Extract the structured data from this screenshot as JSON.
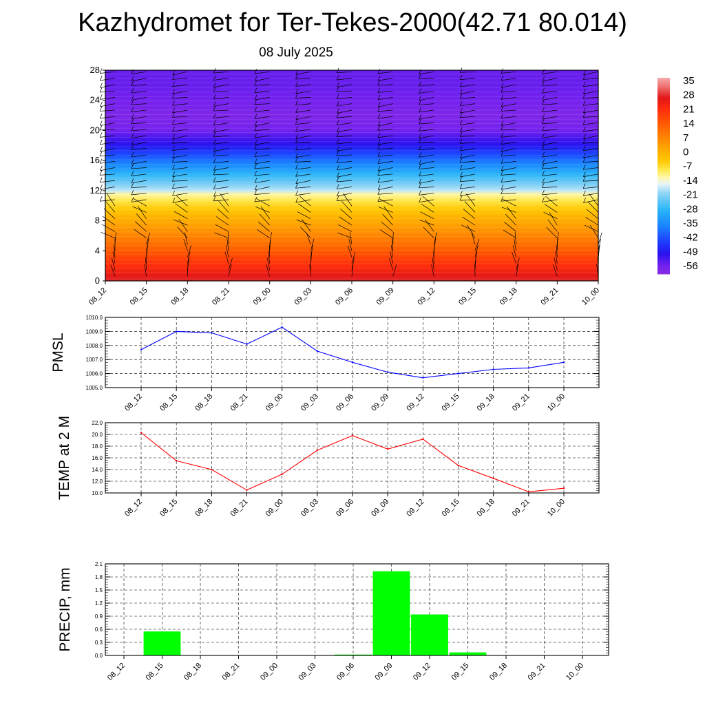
{
  "page": {
    "title": "Kazhydromet for Ter-Tekes-2000(42.71 80.014)",
    "subtitle": "08 July 2025"
  },
  "chart_data": [
    {
      "type": "heatmap",
      "name": "vertical temperature cross-section with wind barbs",
      "x_ticks": [
        "08_12",
        "08_15",
        "08_18",
        "08_21",
        "09_00",
        "09_03",
        "09_06",
        "09_09",
        "09_12",
        "09_15",
        "09_18",
        "09_21",
        "10_00"
      ],
      "y_ticks": [
        0,
        4,
        8,
        12,
        16,
        20,
        24,
        28
      ],
      "ylim": [
        0,
        28
      ],
      "colorbar_labels": [
        35,
        28,
        21,
        14,
        7,
        0,
        -7,
        -14,
        -21,
        -28,
        -35,
        -42,
        -49,
        -56
      ],
      "colorbar_range": [
        -60,
        38
      ],
      "temperature_profile": [
        [
          0,
          30
        ],
        [
          1,
          26
        ],
        [
          2,
          22
        ],
        [
          3,
          19
        ],
        [
          4,
          15
        ],
        [
          6,
          8
        ],
        [
          8,
          2
        ],
        [
          10,
          -5
        ],
        [
          11.6,
          -12
        ],
        [
          12,
          -17
        ],
        [
          14,
          -27
        ],
        [
          16,
          -38
        ],
        [
          18,
          -49
        ],
        [
          20,
          -56
        ],
        [
          22,
          -58
        ],
        [
          24,
          -56
        ],
        [
          26,
          -55
        ],
        [
          28,
          -55
        ]
      ],
      "barbs": "wind barbs at each time step and level",
      "grid": false
    },
    {
      "type": "line",
      "ylabel": "PMSL",
      "categories": [
        "08_12",
        "08_15",
        "08_18",
        "08_21",
        "09_00",
        "09_03",
        "09_06",
        "09_09",
        "09_12",
        "09_15",
        "09_18",
        "09_21",
        "10_00"
      ],
      "y_ticks": [
        "1005.0",
        "1006.0",
        "1007.0",
        "1008.0",
        "1009.0",
        "1010.0"
      ],
      "ylim": [
        1005,
        1010
      ],
      "values": [
        1007.7,
        1009.0,
        1008.9,
        1008.1,
        1009.3,
        1007.6,
        1006.8,
        1006.1,
        1005.7,
        1006.0,
        1006.3,
        1006.4,
        1006.8
      ],
      "color": "#0000ff",
      "grid": true
    },
    {
      "type": "line",
      "ylabel": "TEMP at 2 M",
      "categories": [
        "08_12",
        "08_15",
        "08_18",
        "08_21",
        "09_00",
        "09_03",
        "09_06",
        "09_09",
        "09_12",
        "09_15",
        "09_18",
        "09_21",
        "10_00"
      ],
      "y_ticks": [
        "10.0",
        "12.0",
        "14.0",
        "16.0",
        "18.0",
        "20.0",
        "22.0"
      ],
      "ylim": [
        10,
        22
      ],
      "values": [
        20.3,
        15.5,
        14.0,
        10.5,
        13.2,
        17.3,
        19.8,
        17.5,
        19.2,
        14.7,
        12.5,
        10.2,
        10.8
      ],
      "color": "#ff0000",
      "grid": true
    },
    {
      "type": "bar",
      "ylabel": "PRECIP, mm",
      "categories": [
        "08_12",
        "08_15",
        "08_18",
        "08_21",
        "09_00",
        "09_03",
        "09_06",
        "09_09",
        "09_12",
        "09_15",
        "09_18",
        "09_21",
        "10_00"
      ],
      "y_ticks": [
        "0.0",
        "0.3",
        "0.6",
        "0.9",
        "1.2",
        "1.5",
        "1.8",
        "2.1"
      ],
      "ylim": [
        0,
        2.1
      ],
      "values": [
        0,
        0.55,
        0,
        0,
        0,
        0,
        0.02,
        1.93,
        0.94,
        0.07,
        0,
        0,
        0
      ],
      "color": "#00ff00",
      "grid": true
    }
  ]
}
